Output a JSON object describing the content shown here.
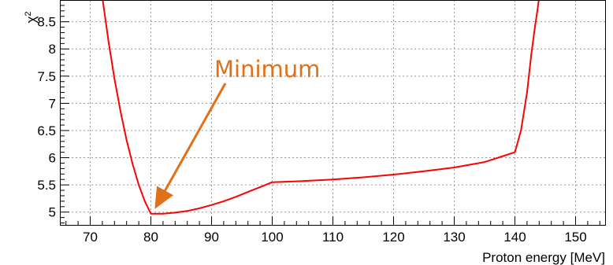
{
  "chart_data": {
    "type": "line",
    "xlabel": "Proton energy [MeV]",
    "ylabel": "χ",
    "ylabel_superscript": "2",
    "xlim": [
      65,
      155
    ],
    "ylim": [
      4.75,
      8.9
    ],
    "xticks": [
      70,
      80,
      90,
      100,
      110,
      120,
      130,
      140,
      150
    ],
    "yticks": [
      5,
      5.5,
      6,
      6.5,
      7,
      7.5,
      8,
      8.5
    ],
    "grid": true,
    "annotation": {
      "text": "Minimum",
      "points_to": {
        "x": 81,
        "y": 5.12
      }
    },
    "series": [
      {
        "color": "#ff0000",
        "x": [
          72,
          73,
          74,
          75,
          76,
          77,
          78,
          79,
          80,
          82,
          84,
          86,
          88,
          90,
          92,
          94,
          96,
          98,
          100,
          105,
          110,
          115,
          120,
          125,
          130,
          135,
          140,
          141,
          142,
          142.7,
          143.3,
          143.7,
          144
        ],
        "y": [
          8.95,
          8.15,
          7.45,
          6.85,
          6.32,
          5.88,
          5.5,
          5.2,
          4.97,
          4.97,
          4.99,
          5.02,
          5.07,
          5.13,
          5.2,
          5.28,
          5.37,
          5.46,
          5.55,
          5.57,
          5.6,
          5.64,
          5.69,
          5.75,
          5.82,
          5.92,
          6.1,
          6.5,
          7.2,
          7.9,
          8.4,
          8.7,
          8.95
        ]
      }
    ]
  },
  "colors": {
    "curve": "#ff0000",
    "annotation": "#e0701a",
    "grid": "#999999",
    "frame": "#000000"
  }
}
